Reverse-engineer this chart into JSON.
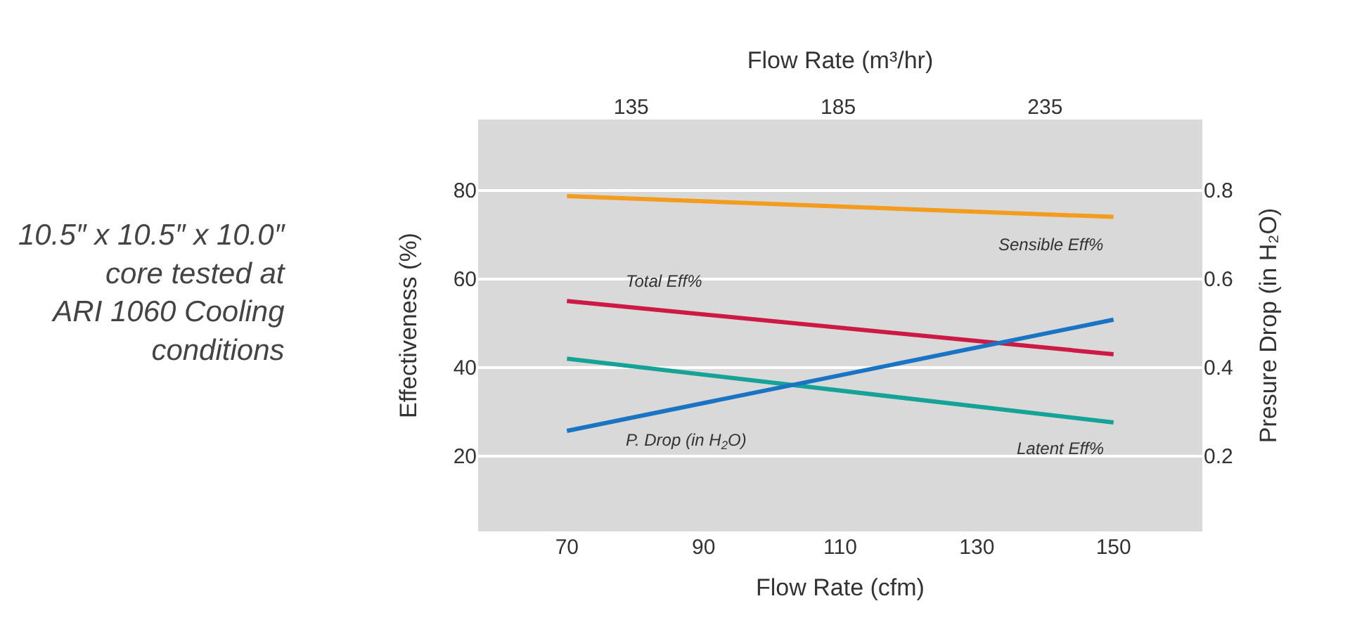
{
  "chart_data": {
    "type": "line",
    "xlabel": "Flow Rate (cfm)",
    "x2label": "Flow Rate (m³/hr)",
    "ylabel": "Effectiveness (%)",
    "y2label": "Presure Drop (in H₂O)",
    "x": [
      70,
      150
    ],
    "xlim": [
      57,
      163
    ],
    "xticks": [
      70,
      90,
      110,
      130,
      150
    ],
    "x2lim": [
      98,
      273
    ],
    "x2ticks": [
      135,
      185,
      235
    ],
    "ylim": [
      3,
      96
    ],
    "yticks": [
      20,
      40,
      60,
      80
    ],
    "y2lim": [
      0.03,
      0.96
    ],
    "y2ticks": [
      0.2,
      0.4,
      0.6,
      0.8
    ],
    "series": [
      {
        "name": "Sensible Eff%",
        "color": "#f39c1e",
        "values": [
          78.7,
          74
        ]
      },
      {
        "name": "Total Eff%",
        "color": "#cc1a44",
        "values": [
          55,
          43
        ]
      },
      {
        "name": "Latent Eff%",
        "color": "#14a396",
        "values": [
          42,
          27.6
        ]
      },
      {
        "name": "P. Drop (in H$_{2}$O)",
        "color": "#1a74c4",
        "values": [
          0.257,
          0.508
        ],
        "axis": "y2"
      }
    ],
    "grid": "y",
    "legend": false,
    "marker": "none",
    "line_style": "solid",
    "annotations": [
      "10.5″ x 10.5″ x 10.0″ core tested at ARI 1060 Cooling conditions"
    ]
  }
}
